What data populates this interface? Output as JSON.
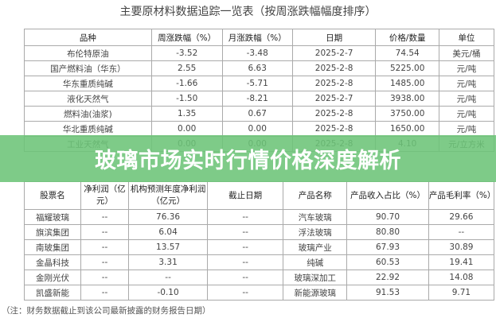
{
  "title": "主要原材料数据追踪一览表（按周涨跌幅幅度排序）",
  "table1": {
    "headers": [
      "品种",
      "周涨跌幅（%）",
      "月涨跌幅（%）",
      "日期",
      "价格/数量",
      "单位"
    ],
    "rows": [
      [
        "布伦特原油",
        "-3.52",
        "-3.48",
        "2025-2-7",
        "74.54",
        "美元/桶"
      ],
      [
        "国产燃料油（华东）",
        "2.55",
        "6.63",
        "2025-2-8",
        "5225.00",
        "元/吨"
      ],
      [
        "华东重质纯碱",
        "-1.66",
        "-5.71",
        "2025-2-8",
        "1485.00",
        "元/吨"
      ],
      [
        "液化天然气",
        "-1.50",
        "-8.21",
        "2025-2-7",
        "3938.00",
        "元/吨"
      ],
      [
        "燃料油(油浆)",
        "1.35",
        "0.67",
        "2025-2-8",
        "3750.00",
        "元/吨"
      ],
      [
        "华北重质纯碱",
        "0.00",
        "0.00",
        "2025-2-8",
        "1650.00",
        "元/吨"
      ],
      [
        "工业天然气",
        "0.00",
        "0.00",
        "2025-2-8",
        "4.10",
        "元/立方米"
      ]
    ]
  },
  "banner": {
    "text": "玻璃市场实时行情价格深度解析",
    "color": "#6cc478"
  },
  "table2": {
    "headers": [
      "股票名",
      "净利润（亿元）",
      "机构预测年度净利润（亿元）",
      "截止日期",
      "产品名称",
      "产品收入占比（%）",
      "产品毛利率（%）"
    ],
    "rows": [
      [
        "福耀玻璃",
        "--",
        "76.36",
        "--",
        "汽车玻璃",
        "90.70",
        "29.66"
      ],
      [
        "旗滨集团",
        "--",
        "6.04",
        "--",
        "浮法玻璃",
        "80.80",
        "--"
      ],
      [
        "南玻集团",
        "--",
        "13.57",
        "--",
        "玻璃产业",
        "67.93",
        "30.89"
      ],
      [
        "金晶科技",
        "--",
        "3.31",
        "--",
        "纯碱",
        "60.53",
        "19.41"
      ],
      [
        "金刚光伏",
        "--",
        "--",
        "--",
        "玻璃深加工",
        "22.92",
        "14.08"
      ],
      [
        "凯盛新能",
        "--",
        "-0.10",
        "--",
        "新能源玻璃",
        "91.53",
        "9.71"
      ]
    ]
  },
  "note": "（注：财务数据截止到该公司最新披露的财务报告日期）"
}
